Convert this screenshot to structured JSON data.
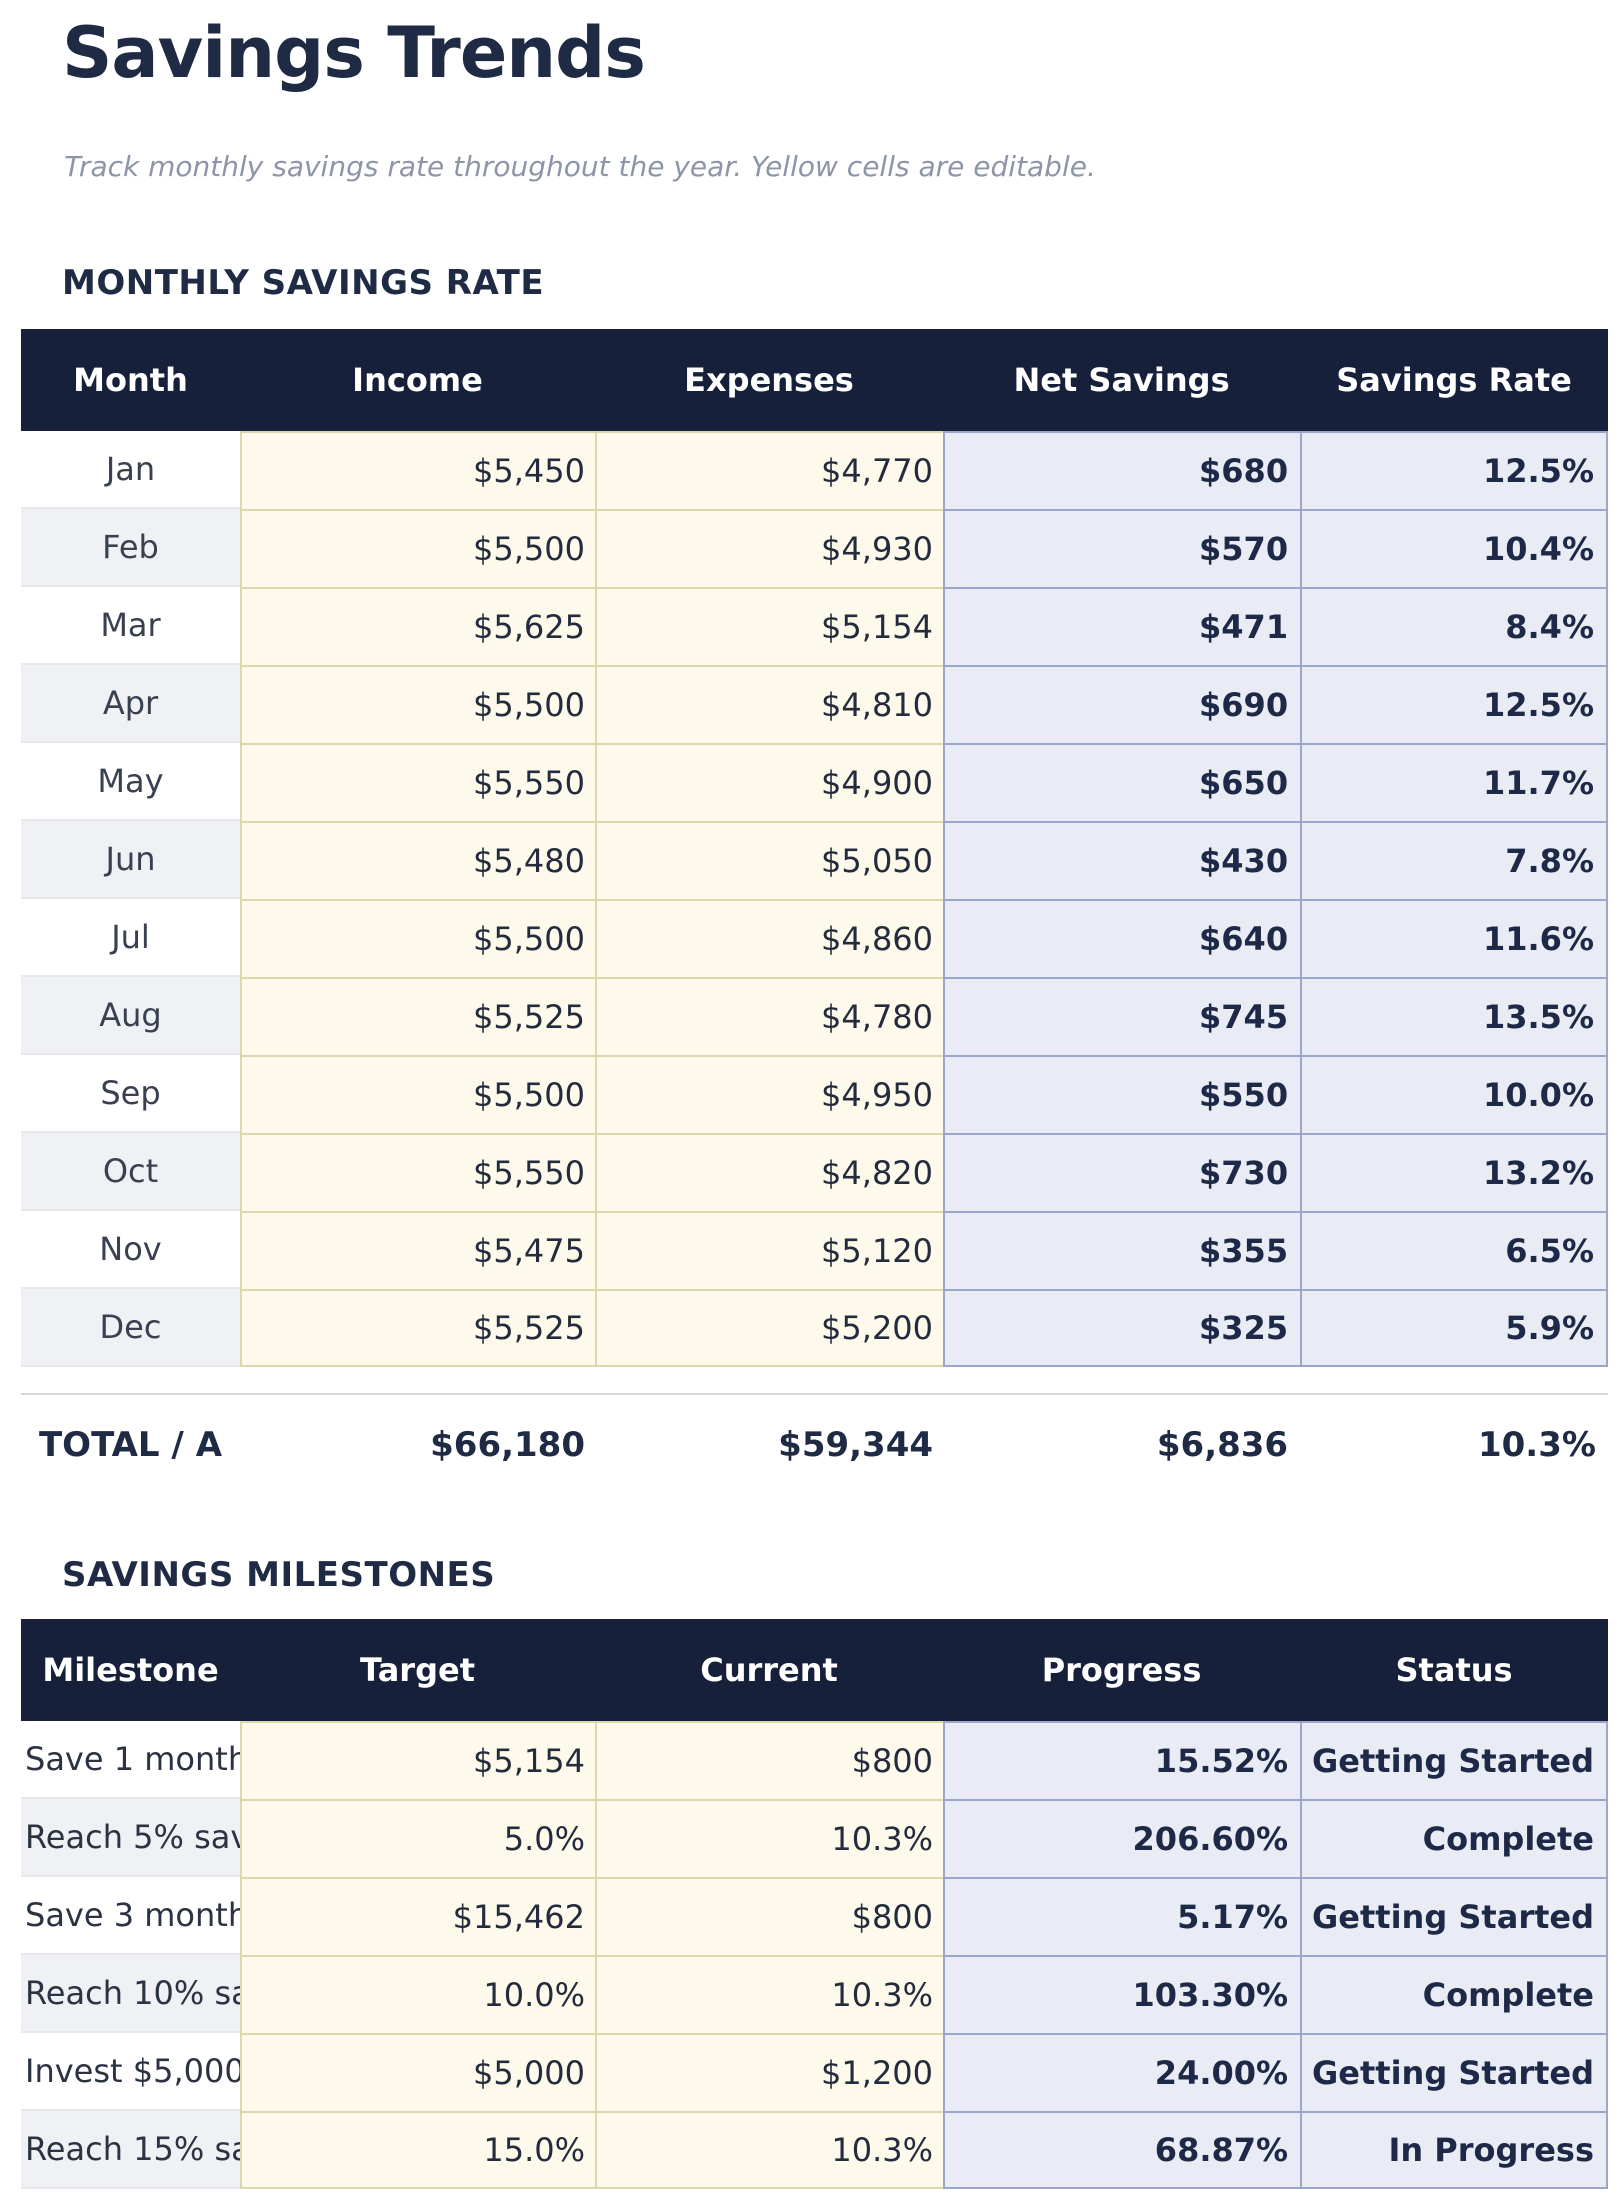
{
  "page": {
    "title": "Savings Trends",
    "subtitle": "Track monthly savings rate throughout the year. Yellow cells are editable."
  },
  "theme": {
    "header_bg": "#17203a",
    "heading_text": "#1f2a44",
    "subtitle_text": "#8d95a8",
    "editable_cell_bg": "#fdfaec",
    "editable_cell_border": "#ddd7ad",
    "computed_cell_bg": "#e9ecf5",
    "computed_cell_border": "#9ca6ca",
    "alt_row_bg": "#f0f1f4"
  },
  "monthly": {
    "section_title": "MONTHLY SAVINGS RATE",
    "columns": [
      "Month",
      "Income",
      "Expenses",
      "Net Savings",
      "Savings Rate"
    ],
    "rows": [
      {
        "month": "Jan",
        "income": "$5,450",
        "expenses": "$4,770",
        "net": "$680",
        "rate": "12.5%"
      },
      {
        "month": "Feb",
        "income": "$5,500",
        "expenses": "$4,930",
        "net": "$570",
        "rate": "10.4%"
      },
      {
        "month": "Mar",
        "income": "$5,625",
        "expenses": "$5,154",
        "net": "$471",
        "rate": "8.4%"
      },
      {
        "month": "Apr",
        "income": "$5,500",
        "expenses": "$4,810",
        "net": "$690",
        "rate": "12.5%"
      },
      {
        "month": "May",
        "income": "$5,550",
        "expenses": "$4,900",
        "net": "$650",
        "rate": "11.7%"
      },
      {
        "month": "Jun",
        "income": "$5,480",
        "expenses": "$5,050",
        "net": "$430",
        "rate": "7.8%"
      },
      {
        "month": "Jul",
        "income": "$5,500",
        "expenses": "$4,860",
        "net": "$640",
        "rate": "11.6%"
      },
      {
        "month": "Aug",
        "income": "$5,525",
        "expenses": "$4,780",
        "net": "$745",
        "rate": "13.5%"
      },
      {
        "month": "Sep",
        "income": "$5,500",
        "expenses": "$4,950",
        "net": "$550",
        "rate": "10.0%"
      },
      {
        "month": "Oct",
        "income": "$5,550",
        "expenses": "$4,820",
        "net": "$730",
        "rate": "13.2%"
      },
      {
        "month": "Nov",
        "income": "$5,475",
        "expenses": "$5,120",
        "net": "$355",
        "rate": "6.5%"
      },
      {
        "month": "Dec",
        "income": "$5,525",
        "expenses": "$5,200",
        "net": "$325",
        "rate": "5.9%"
      }
    ],
    "total": {
      "label": "TOTAL / A",
      "income": "$66,180",
      "expenses": "$59,344",
      "net": "$6,836",
      "rate": "10.3%"
    }
  },
  "milestones": {
    "section_title": "SAVINGS MILESTONES",
    "columns": [
      "Milestone",
      "Target",
      "Current",
      "Progress",
      "Status"
    ],
    "rows": [
      {
        "milestone": "Save 1 month",
        "target": "$5,154",
        "current": "$800",
        "progress": "15.52%",
        "status": "Getting Started"
      },
      {
        "milestone": "Reach 5% sav",
        "target": "5.0%",
        "current": "10.3%",
        "progress": "206.60%",
        "status": "Complete"
      },
      {
        "milestone": "Save 3 month",
        "target": "$15,462",
        "current": "$800",
        "progress": "5.17%",
        "status": "Getting Started"
      },
      {
        "milestone": "Reach 10% sa",
        "target": "10.0%",
        "current": "10.3%",
        "progress": "103.30%",
        "status": "Complete"
      },
      {
        "milestone": "Invest $5,000",
        "target": "$5,000",
        "current": "$1,200",
        "progress": "24.00%",
        "status": "Getting Started"
      },
      {
        "milestone": "Reach 15% sa",
        "target": "15.0%",
        "current": "10.3%",
        "progress": "68.87%",
        "status": "In Progress"
      }
    ]
  }
}
